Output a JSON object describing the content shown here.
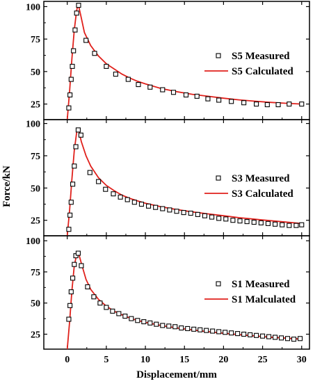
{
  "chart_data": {
    "type": "line",
    "xlabel": "Displacement/mm",
    "ylabel": "Force/kN",
    "xlim": [
      -3,
      31
    ],
    "x_ticks": [
      "0",
      "5",
      "10",
      "15",
      "20",
      "25",
      "30"
    ],
    "y_ticks": [
      "25",
      "50",
      "75",
      "100"
    ],
    "grid": false,
    "legend_position": "right",
    "colors": {
      "measured": "#000000",
      "calculated": "#e0201b"
    },
    "panels": [
      {
        "id": "S5",
        "ylim": [
          13,
          104
        ],
        "series": [
          {
            "name": "S5 Measured",
            "kind": "scatter",
            "x": [
              0.2,
              0.35,
              0.5,
              0.65,
              0.8,
              1.0,
              1.2,
              1.45,
              2.4,
              3.5,
              5.0,
              6.2,
              7.8,
              9.1,
              10.6,
              12.2,
              13.6,
              15.2,
              16.6,
              18.0,
              19.4,
              21.0,
              22.6,
              24.2,
              25.6,
              27.0,
              28.4,
              30.0
            ],
            "y": [
              22,
              32,
              44,
              54,
              66,
              82,
              95,
              101,
              74,
              64,
              54,
              48,
              44,
              40,
              38,
              36,
              34,
              32,
              31,
              29,
              28,
              27,
              26,
              25,
              24.5,
              24.5,
              25,
              25
            ]
          },
          {
            "name": "S5 Calculated",
            "kind": "line",
            "x": [
              0,
              0.3,
              0.6,
              0.9,
              1.2,
              1.4,
              1.7,
              2.2,
              3.0,
              4.0,
              5.0,
              6.0,
              7.0,
              8.0,
              9.0,
              10.0,
              12.0,
              14.0,
              16.0,
              18.0,
              20.0,
              22.0,
              24.0,
              26.0,
              28.0,
              30.0
            ],
            "y": [
              13,
              35,
              60,
              82,
              97,
              102,
              94,
              80,
              70,
              62,
              56,
              52,
              48,
              45,
              42.5,
              40.5,
              37,
              34.5,
              32.5,
              31,
              29.5,
              28.2,
              27.2,
              26.3,
              25.6,
              25
            ]
          }
        ]
      },
      {
        "id": "S3",
        "ylim": [
          13,
          103
        ],
        "series": [
          {
            "name": "S3  Measured",
            "kind": "scatter",
            "x": [
              0.2,
              0.35,
              0.5,
              0.7,
              0.9,
              1.1,
              1.4,
              1.75,
              2.9,
              4.0,
              4.9,
              5.9,
              6.8,
              7.7,
              8.6,
              9.5,
              10.4,
              11.3,
              12.2,
              13.1,
              14.0,
              14.9,
              15.8,
              16.7,
              17.6,
              18.5,
              19.4,
              20.3,
              21.2,
              22.1,
              23.0,
              23.9,
              24.8,
              25.7,
              26.6,
              27.5,
              28.4,
              29.3,
              30.0
            ],
            "y": [
              18,
              29,
              39,
              53,
              67,
              82,
              95,
              91,
              62,
              55,
              49,
              45.5,
              43,
              41,
              39,
              37.5,
              36,
              35,
              34,
              33,
              32,
              31,
              30.5,
              29.5,
              28.5,
              27.5,
              26.5,
              26,
              25,
              24.5,
              24,
              23.5,
              23,
              22.5,
              22,
              21.5,
              21,
              21,
              21.5
            ]
          },
          {
            "name": "S3  Calculated",
            "kind": "line",
            "x": [
              0,
              0.3,
              0.6,
              0.9,
              1.2,
              1.45,
              1.8,
              2.4,
              3.0,
              4.0,
              5.0,
              6.0,
              7.0,
              8.0,
              9.0,
              10.0,
              12.0,
              14.0,
              16.0,
              18.0,
              20.0,
              22.0,
              24.0,
              26.0,
              28.0,
              30.0
            ],
            "y": [
              13,
              33,
              57,
              79,
              93,
              95,
              86,
              75,
              67,
              58,
              52,
              48,
              44.5,
              42,
              40,
              38.2,
              35.5,
              33.3,
              31.5,
              30,
              28.5,
              27,
              25.8,
              24.7,
              23.6,
              22.5
            ]
          }
        ]
      },
      {
        "id": "S1",
        "ylim": [
          13,
          104
        ],
        "series": [
          {
            "name": "S1 Measured",
            "kind": "scatter",
            "x": [
              0.2,
              0.35,
              0.5,
              0.7,
              0.9,
              1.1,
              1.4,
              1.8,
              2.6,
              3.4,
              4.2,
              5.0,
              5.8,
              6.6,
              7.4,
              8.2,
              9.0,
              9.8,
              10.6,
              11.4,
              12.2,
              13.0,
              13.8,
              14.6,
              15.4,
              16.2,
              17.0,
              17.8,
              18.6,
              19.4,
              20.2,
              21.0,
              21.8,
              22.6,
              23.4,
              24.2,
              25.0,
              25.8,
              26.6,
              27.4,
              28.2,
              29.0,
              29.8
            ],
            "y": [
              37,
              48,
              59,
              70,
              81,
              88,
              90,
              80,
              63,
              55,
              50,
              46.5,
              43.5,
              41.5,
              39.5,
              37.5,
              36,
              35,
              34,
              33,
              32,
              31.5,
              31,
              30,
              29.5,
              29,
              28.5,
              28,
              27.5,
              27,
              26.5,
              26,
              25.5,
              25,
              24.5,
              24,
              23.5,
              23,
              22.5,
              22,
              21.5,
              21,
              21.5
            ]
          },
          {
            "name": "S1 Malculated",
            "kind": "line",
            "x": [
              0,
              0.3,
              0.6,
              0.9,
              1.2,
              1.45,
              1.8,
              2.4,
              3.0,
              4.0,
              5.0,
              6.0,
              7.0,
              8.0,
              9.0,
              10.0,
              12.0,
              14.0,
              16.0,
              18.0,
              20.0,
              22.0,
              24.0,
              26.0,
              28.0,
              30.0
            ],
            "y": [
              13,
              35,
              60,
              80,
              89,
              90,
              82,
              69,
              61,
              53,
              47.5,
              43.5,
              40.5,
              38,
              36,
              34.5,
              32,
              30,
              28.4,
              27,
              25.8,
              24.6,
              23.6,
              22.6,
              21.8,
              21
            ]
          }
        ]
      }
    ]
  }
}
